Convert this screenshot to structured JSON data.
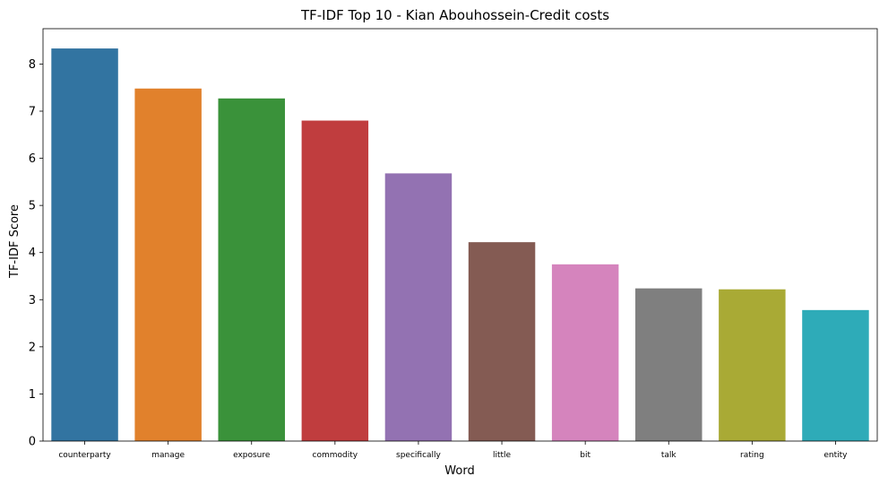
{
  "chart_data": {
    "type": "bar",
    "title": "TF-IDF Top 10 - Kian Abouhossein-Credit costs",
    "xlabel": "Word",
    "ylabel": "TF-IDF Score",
    "categories": [
      "counterparty",
      "manage",
      "exposure",
      "commodity",
      "specifically",
      "little",
      "bit",
      "talk",
      "rating",
      "entity"
    ],
    "values": [
      8.33,
      7.48,
      7.27,
      6.8,
      5.68,
      4.22,
      3.75,
      3.24,
      3.22,
      2.78
    ],
    "colors": [
      "#3274a1",
      "#e1812c",
      "#3a923a",
      "#c03d3e",
      "#9372b2",
      "#845b53",
      "#d584bd",
      "#7f7f7f",
      "#a9aa35",
      "#2eabb8"
    ],
    "ylim": [
      0,
      8.75
    ],
    "yticks": [
      0,
      1,
      2,
      3,
      4,
      5,
      6,
      7,
      8
    ],
    "grid": false,
    "legend": "none"
  }
}
